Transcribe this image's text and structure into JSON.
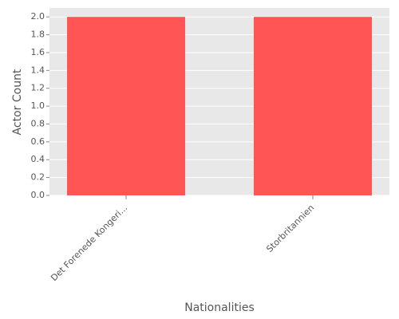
{
  "chart_data": {
    "type": "bar",
    "categories": [
      "Det Forenede Kongeri...",
      "Storbritannien"
    ],
    "values": [
      2,
      2
    ],
    "color": "#ff5555",
    "x_label": "Nationalities",
    "y_label": "Actor Count",
    "ylim": [
      0,
      2.1
    ],
    "yticks": [
      {
        "value": 0,
        "label": "0.0"
      },
      {
        "value": 0.2,
        "label": "0.2"
      },
      {
        "value": 0.4,
        "label": "0.4"
      },
      {
        "value": 0.6,
        "label": "0.6"
      },
      {
        "value": 0.8,
        "label": "0.8"
      },
      {
        "value": 1.0,
        "label": "1.0"
      },
      {
        "value": 1.2,
        "label": "1.2"
      },
      {
        "value": 1.4,
        "label": "1.4"
      },
      {
        "value": 1.6,
        "label": "1.6"
      },
      {
        "value": 1.8,
        "label": "1.8"
      },
      {
        "value": 2.0,
        "label": "2.0"
      }
    ],
    "grid": true
  }
}
